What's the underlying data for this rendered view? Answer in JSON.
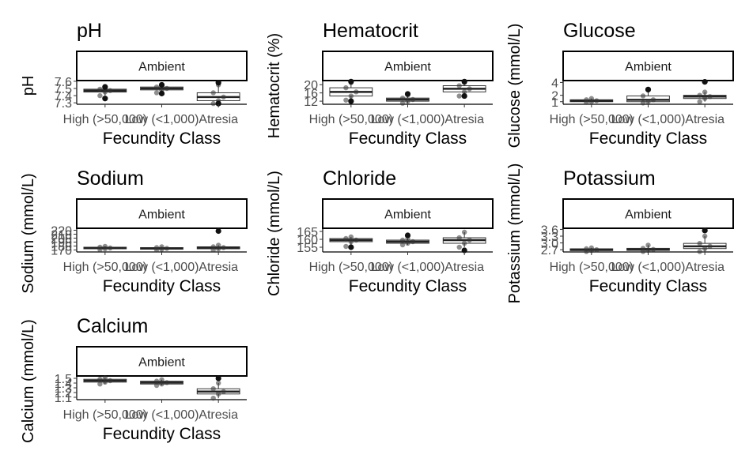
{
  "chart_data": [
    {
      "type": "box",
      "title": "pH",
      "facet_label": "Ambient",
      "xlabel": "Fecundity Class",
      "ylabel": "pH",
      "categories": [
        "High (>50,000)",
        "Low (<1,000)",
        "Atresia"
      ],
      "yticks": [
        "7.3",
        "7.4",
        "7.5",
        "7.6"
      ],
      "ylim": [
        7.28,
        7.61
      ],
      "boxes": [
        {
          "category": "High (>50,000)",
          "q1": 7.45,
          "median": 7.47,
          "q3": 7.49,
          "whisker_low": 7.4,
          "whisker_high": 7.53,
          "outliers": [
            7.36,
            7.52
          ]
        },
        {
          "category": "Low (<1,000)",
          "q1": 7.48,
          "median": 7.5,
          "q3": 7.52,
          "whisker_low": 7.44,
          "whisker_high": 7.55,
          "outliers": [
            7.43,
            7.55
          ]
        },
        {
          "category": "Atresia",
          "q1": 7.33,
          "median": 7.38,
          "q3": 7.44,
          "whisker_low": 7.29,
          "whisker_high": 7.55,
          "outliers": [
            7.29,
            7.58
          ]
        }
      ]
    },
    {
      "type": "box",
      "title": "Hematocrit",
      "facet_label": "Ambient",
      "xlabel": "Fecundity Class",
      "ylabel": "Hematocrit (%)",
      "categories": [
        "High (>50,000)",
        "Low (<1,000)",
        "Atresia"
      ],
      "yticks": [
        "12",
        "16",
        "20"
      ],
      "ylim": [
        10.5,
        22
      ],
      "boxes": [
        {
          "category": "High (>50,000)",
          "q1": 14.5,
          "median": 16.5,
          "q3": 18.5,
          "whisker_low": 12.5,
          "whisker_high": 21.0,
          "outliers": [
            12.0,
            21.5
          ]
        },
        {
          "category": "Low (<1,000)",
          "q1": 12.0,
          "median": 12.8,
          "q3": 13.5,
          "whisker_low": 11.0,
          "whisker_high": 15.0,
          "outliers": [
            15.5
          ]
        },
        {
          "category": "Atresia",
          "q1": 16.5,
          "median": 18.0,
          "q3": 19.5,
          "whisker_low": 14.5,
          "whisker_high": 21.0,
          "outliers": [
            14.5,
            21.5
          ]
        }
      ]
    },
    {
      "type": "box",
      "title": "Glucose",
      "facet_label": "Ambient",
      "xlabel": "Fecundity Class",
      "ylabel": "Glucose (mmol/L)",
      "categories": [
        "High (>50,000)",
        "Low (<1,000)",
        "Atresia"
      ],
      "yticks": [
        "1",
        "2",
        "4"
      ],
      "ylim": [
        0.6,
        4.3
      ],
      "boxes": [
        {
          "category": "High (>50,000)",
          "q1": 1.0,
          "median": 1.15,
          "q3": 1.3,
          "whisker_low": 0.9,
          "whisker_high": 1.5,
          "outliers": []
        },
        {
          "category": "Low (<1,000)",
          "q1": 1.0,
          "median": 1.3,
          "q3": 1.9,
          "whisker_low": 0.8,
          "whisker_high": 2.8,
          "outliers": [
            2.9
          ]
        },
        {
          "category": "Atresia",
          "q1": 1.5,
          "median": 1.8,
          "q3": 2.0,
          "whisker_low": 1.0,
          "whisker_high": 2.5,
          "outliers": [
            4.1
          ]
        }
      ]
    },
    {
      "type": "box",
      "title": "Sodium",
      "facet_label": "Ambient",
      "xlabel": "Fecundity Class",
      "ylabel": "Sodium (mmol/L)",
      "categories": [
        "High (>50,000)",
        "Low (<1,000)",
        "Atresia"
      ],
      "yticks": [
        "170",
        "180",
        "190",
        "200",
        "210",
        "220"
      ],
      "ylim": [
        165,
        225
      ],
      "boxes": [
        {
          "category": "High (>50,000)",
          "q1": 173,
          "median": 175,
          "q3": 177,
          "whisker_low": 171,
          "whisker_high": 179,
          "outliers": []
        },
        {
          "category": "Low (<1,000)",
          "q1": 172,
          "median": 174,
          "q3": 176,
          "whisker_low": 170,
          "whisker_high": 178,
          "outliers": []
        },
        {
          "category": "Atresia",
          "q1": 173,
          "median": 176,
          "q3": 178,
          "whisker_low": 170,
          "whisker_high": 182,
          "outliers": [
            218
          ]
        }
      ]
    },
    {
      "type": "box",
      "title": "Chloride",
      "facet_label": "Ambient",
      "xlabel": "Fecundity Class",
      "ylabel": "Chloride (mmol/L)",
      "categories": [
        "High (>50,000)",
        "Low (<1,000)",
        "Atresia"
      ],
      "yticks": [
        "155",
        "160",
        "165"
      ],
      "ylim": [
        152,
        167
      ],
      "boxes": [
        {
          "category": "High (>50,000)",
          "q1": 158.5,
          "median": 159.5,
          "q3": 160.5,
          "whisker_low": 155.5,
          "whisker_high": 161.5,
          "outliers": [
            155
          ]
        },
        {
          "category": "Low (<1,000)",
          "q1": 157.5,
          "median": 158.5,
          "q3": 159.5,
          "whisker_low": 156.5,
          "whisker_high": 160.5,
          "outliers": [
            162.5
          ]
        },
        {
          "category": "Atresia",
          "q1": 157.5,
          "median": 159.5,
          "q3": 161.0,
          "whisker_low": 155.0,
          "whisker_high": 164.5,
          "outliers": [
            153
          ]
        }
      ]
    },
    {
      "type": "box",
      "title": "Potassium",
      "facet_label": "Ambient",
      "xlabel": "Fecundity Class",
      "ylabel": "Potassium (mmol/L)",
      "categories": [
        "High (>50,000)",
        "Low (<1,000)",
        "Atresia"
      ],
      "yticks": [
        "2.7",
        "3.0",
        "3.3",
        "3.6"
      ],
      "ylim": [
        2.6,
        3.65
      ],
      "boxes": [
        {
          "category": "High (>50,000)",
          "q1": 2.66,
          "median": 2.7,
          "q3": 2.74,
          "whisker_low": 2.62,
          "whisker_high": 2.78,
          "outliers": []
        },
        {
          "category": "Low (<1,000)",
          "q1": 2.67,
          "median": 2.71,
          "q3": 2.76,
          "whisker_low": 2.62,
          "whisker_high": 2.9,
          "outliers": []
        },
        {
          "category": "Atresia",
          "q1": 2.75,
          "median": 2.85,
          "q3": 2.98,
          "whisker_low": 2.62,
          "whisker_high": 3.3,
          "outliers": [
            3.55
          ]
        }
      ]
    },
    {
      "type": "box",
      "title": "Calcium",
      "facet_label": "Ambient",
      "xlabel": "Fecundity Class",
      "ylabel": "Calcium (mmol/L)",
      "categories": [
        "High (>50,000)",
        "Low (<1,000)",
        "Atresia"
      ],
      "yticks": [
        "1.1",
        "1.2",
        "1.3",
        "1.4",
        "1.5"
      ],
      "ylim": [
        1.05,
        1.55
      ],
      "boxes": [
        {
          "category": "High (>50,000)",
          "q1": 1.42,
          "median": 1.45,
          "q3": 1.48,
          "whisker_low": 1.38,
          "whisker_high": 1.51,
          "outliers": []
        },
        {
          "category": "Low (<1,000)",
          "q1": 1.38,
          "median": 1.41,
          "q3": 1.44,
          "whisker_low": 1.35,
          "whisker_high": 1.47,
          "outliers": []
        },
        {
          "category": "Atresia",
          "q1": 1.17,
          "median": 1.22,
          "q3": 1.28,
          "whisker_low": 1.08,
          "whisker_high": 1.4,
          "outliers": [
            1.5
          ]
        }
      ]
    }
  ]
}
